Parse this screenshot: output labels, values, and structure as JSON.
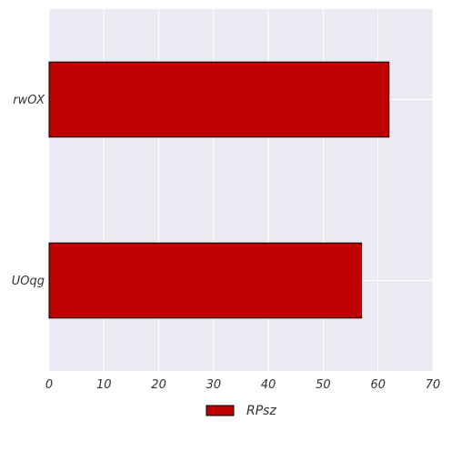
{
  "chart_data": {
    "type": "bar",
    "orientation": "horizontal",
    "categories": [
      "rwOX",
      "UOqg"
    ],
    "series": [
      {
        "name": "RPsz",
        "values": [
          62,
          57
        ]
      }
    ],
    "xlim": [
      0,
      70
    ],
    "xticks": [
      0,
      10,
      20,
      30,
      40,
      50,
      60,
      70
    ],
    "xlabel": "",
    "ylabel": "",
    "title": "",
    "grid": true,
    "legend": "bottom-center"
  },
  "colors": {
    "plot_background": "#eaeaf2",
    "grid": "#ffffff",
    "bar_fill": "#bf0000",
    "bar_edge": "#000000"
  }
}
